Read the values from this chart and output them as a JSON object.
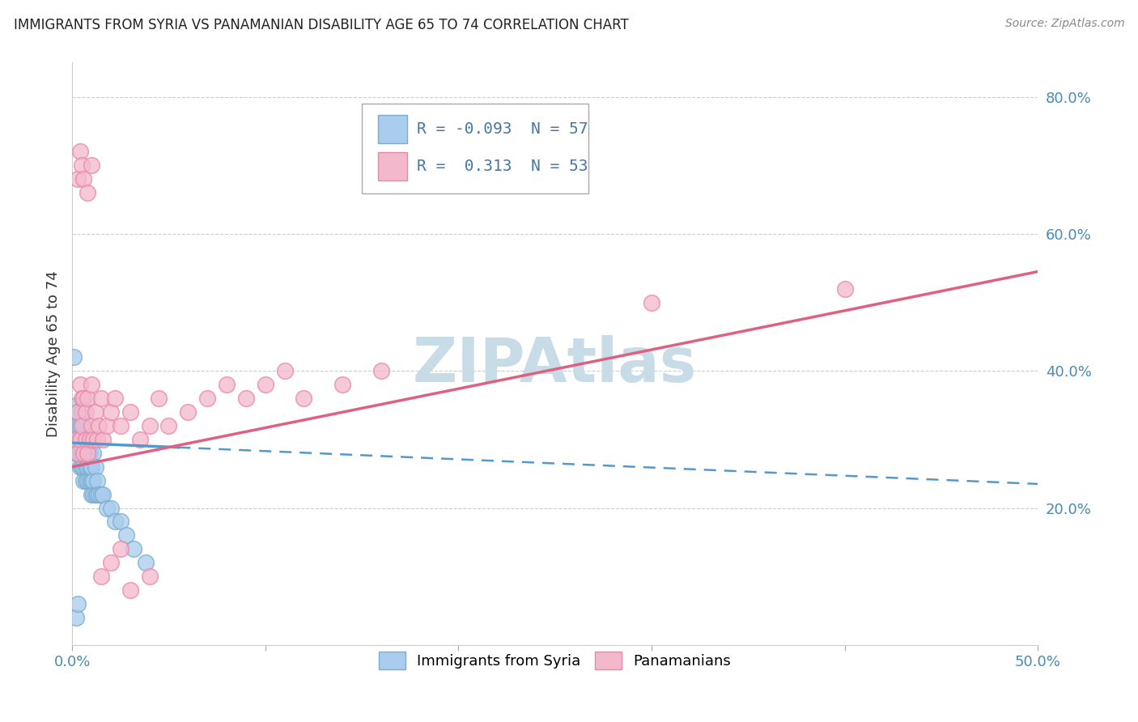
{
  "title": "IMMIGRANTS FROM SYRIA VS PANAMANIAN DISABILITY AGE 65 TO 74 CORRELATION CHART",
  "source": "Source: ZipAtlas.com",
  "ylabel": "Disability Age 65 to 74",
  "x_min": 0.0,
  "x_max": 0.5,
  "y_min": 0.0,
  "y_max": 0.85,
  "y_ticks_right": [
    0.0,
    0.2,
    0.4,
    0.6,
    0.8
  ],
  "y_tick_labels_right": [
    "",
    "20.0%",
    "40.0%",
    "60.0%",
    "80.0%"
  ],
  "series1_name": "Immigrants from Syria",
  "series1_color": "#aaccee",
  "series1_edge_color": "#7aaece",
  "series1_R": "-0.093",
  "series1_N": 57,
  "series1_line_color": "#5599cc",
  "series2_name": "Panamanians",
  "series2_color": "#f4b8cc",
  "series2_edge_color": "#e888a8",
  "series2_R": "0.313",
  "series2_N": 53,
  "series2_line_color": "#e06080",
  "watermark": "ZIPAtlas",
  "watermark_color": "#c8dce8",
  "legend_text_color": "#4477aa",
  "legend_N_color": "#4477aa",
  "grid_color": "#cccccc",
  "spine_color": "#cccccc",
  "tick_color": "#aaaaaa",
  "syria_x": [
    0.001,
    0.001,
    0.002,
    0.002,
    0.002,
    0.002,
    0.003,
    0.003,
    0.003,
    0.003,
    0.004,
    0.004,
    0.004,
    0.004,
    0.005,
    0.005,
    0.005,
    0.005,
    0.006,
    0.006,
    0.006,
    0.006,
    0.007,
    0.007,
    0.007,
    0.007,
    0.008,
    0.008,
    0.008,
    0.008,
    0.009,
    0.009,
    0.009,
    0.009,
    0.01,
    0.01,
    0.01,
    0.01,
    0.011,
    0.011,
    0.011,
    0.012,
    0.012,
    0.013,
    0.013,
    0.014,
    0.015,
    0.016,
    0.018,
    0.02,
    0.022,
    0.025,
    0.028,
    0.032,
    0.038,
    0.002,
    0.003
  ],
  "syria_y": [
    0.3,
    0.42,
    0.3,
    0.28,
    0.32,
    0.35,
    0.28,
    0.3,
    0.32,
    0.34,
    0.26,
    0.28,
    0.3,
    0.32,
    0.26,
    0.28,
    0.3,
    0.34,
    0.24,
    0.26,
    0.28,
    0.32,
    0.24,
    0.26,
    0.28,
    0.3,
    0.24,
    0.26,
    0.28,
    0.3,
    0.24,
    0.26,
    0.28,
    0.3,
    0.22,
    0.24,
    0.26,
    0.3,
    0.22,
    0.24,
    0.28,
    0.22,
    0.26,
    0.22,
    0.24,
    0.22,
    0.22,
    0.22,
    0.2,
    0.2,
    0.18,
    0.18,
    0.16,
    0.14,
    0.12,
    0.04,
    0.06
  ],
  "panama_x": [
    0.002,
    0.003,
    0.003,
    0.004,
    0.004,
    0.005,
    0.005,
    0.006,
    0.006,
    0.007,
    0.007,
    0.008,
    0.008,
    0.009,
    0.01,
    0.01,
    0.011,
    0.012,
    0.013,
    0.014,
    0.015,
    0.016,
    0.018,
    0.02,
    0.022,
    0.025,
    0.03,
    0.035,
    0.04,
    0.045,
    0.05,
    0.06,
    0.07,
    0.08,
    0.09,
    0.1,
    0.11,
    0.12,
    0.14,
    0.16,
    0.003,
    0.004,
    0.005,
    0.006,
    0.008,
    0.01,
    0.015,
    0.02,
    0.025,
    0.03,
    0.04,
    0.3,
    0.4
  ],
  "panama_y": [
    0.3,
    0.34,
    0.28,
    0.38,
    0.3,
    0.32,
    0.36,
    0.28,
    0.36,
    0.3,
    0.34,
    0.28,
    0.36,
    0.3,
    0.32,
    0.38,
    0.3,
    0.34,
    0.3,
    0.32,
    0.36,
    0.3,
    0.32,
    0.34,
    0.36,
    0.32,
    0.34,
    0.3,
    0.32,
    0.36,
    0.32,
    0.34,
    0.36,
    0.38,
    0.36,
    0.38,
    0.4,
    0.36,
    0.38,
    0.4,
    0.68,
    0.72,
    0.7,
    0.68,
    0.66,
    0.7,
    0.1,
    0.12,
    0.14,
    0.08,
    0.1,
    0.5,
    0.52
  ],
  "syria_line_x0": 0.0,
  "syria_line_x1": 0.5,
  "syria_line_y0": 0.295,
  "syria_line_y1": 0.235,
  "syria_line_solid_x1": 0.055,
  "panama_line_x0": 0.0,
  "panama_line_x1": 0.5,
  "panama_line_y0": 0.26,
  "panama_line_y1": 0.545
}
